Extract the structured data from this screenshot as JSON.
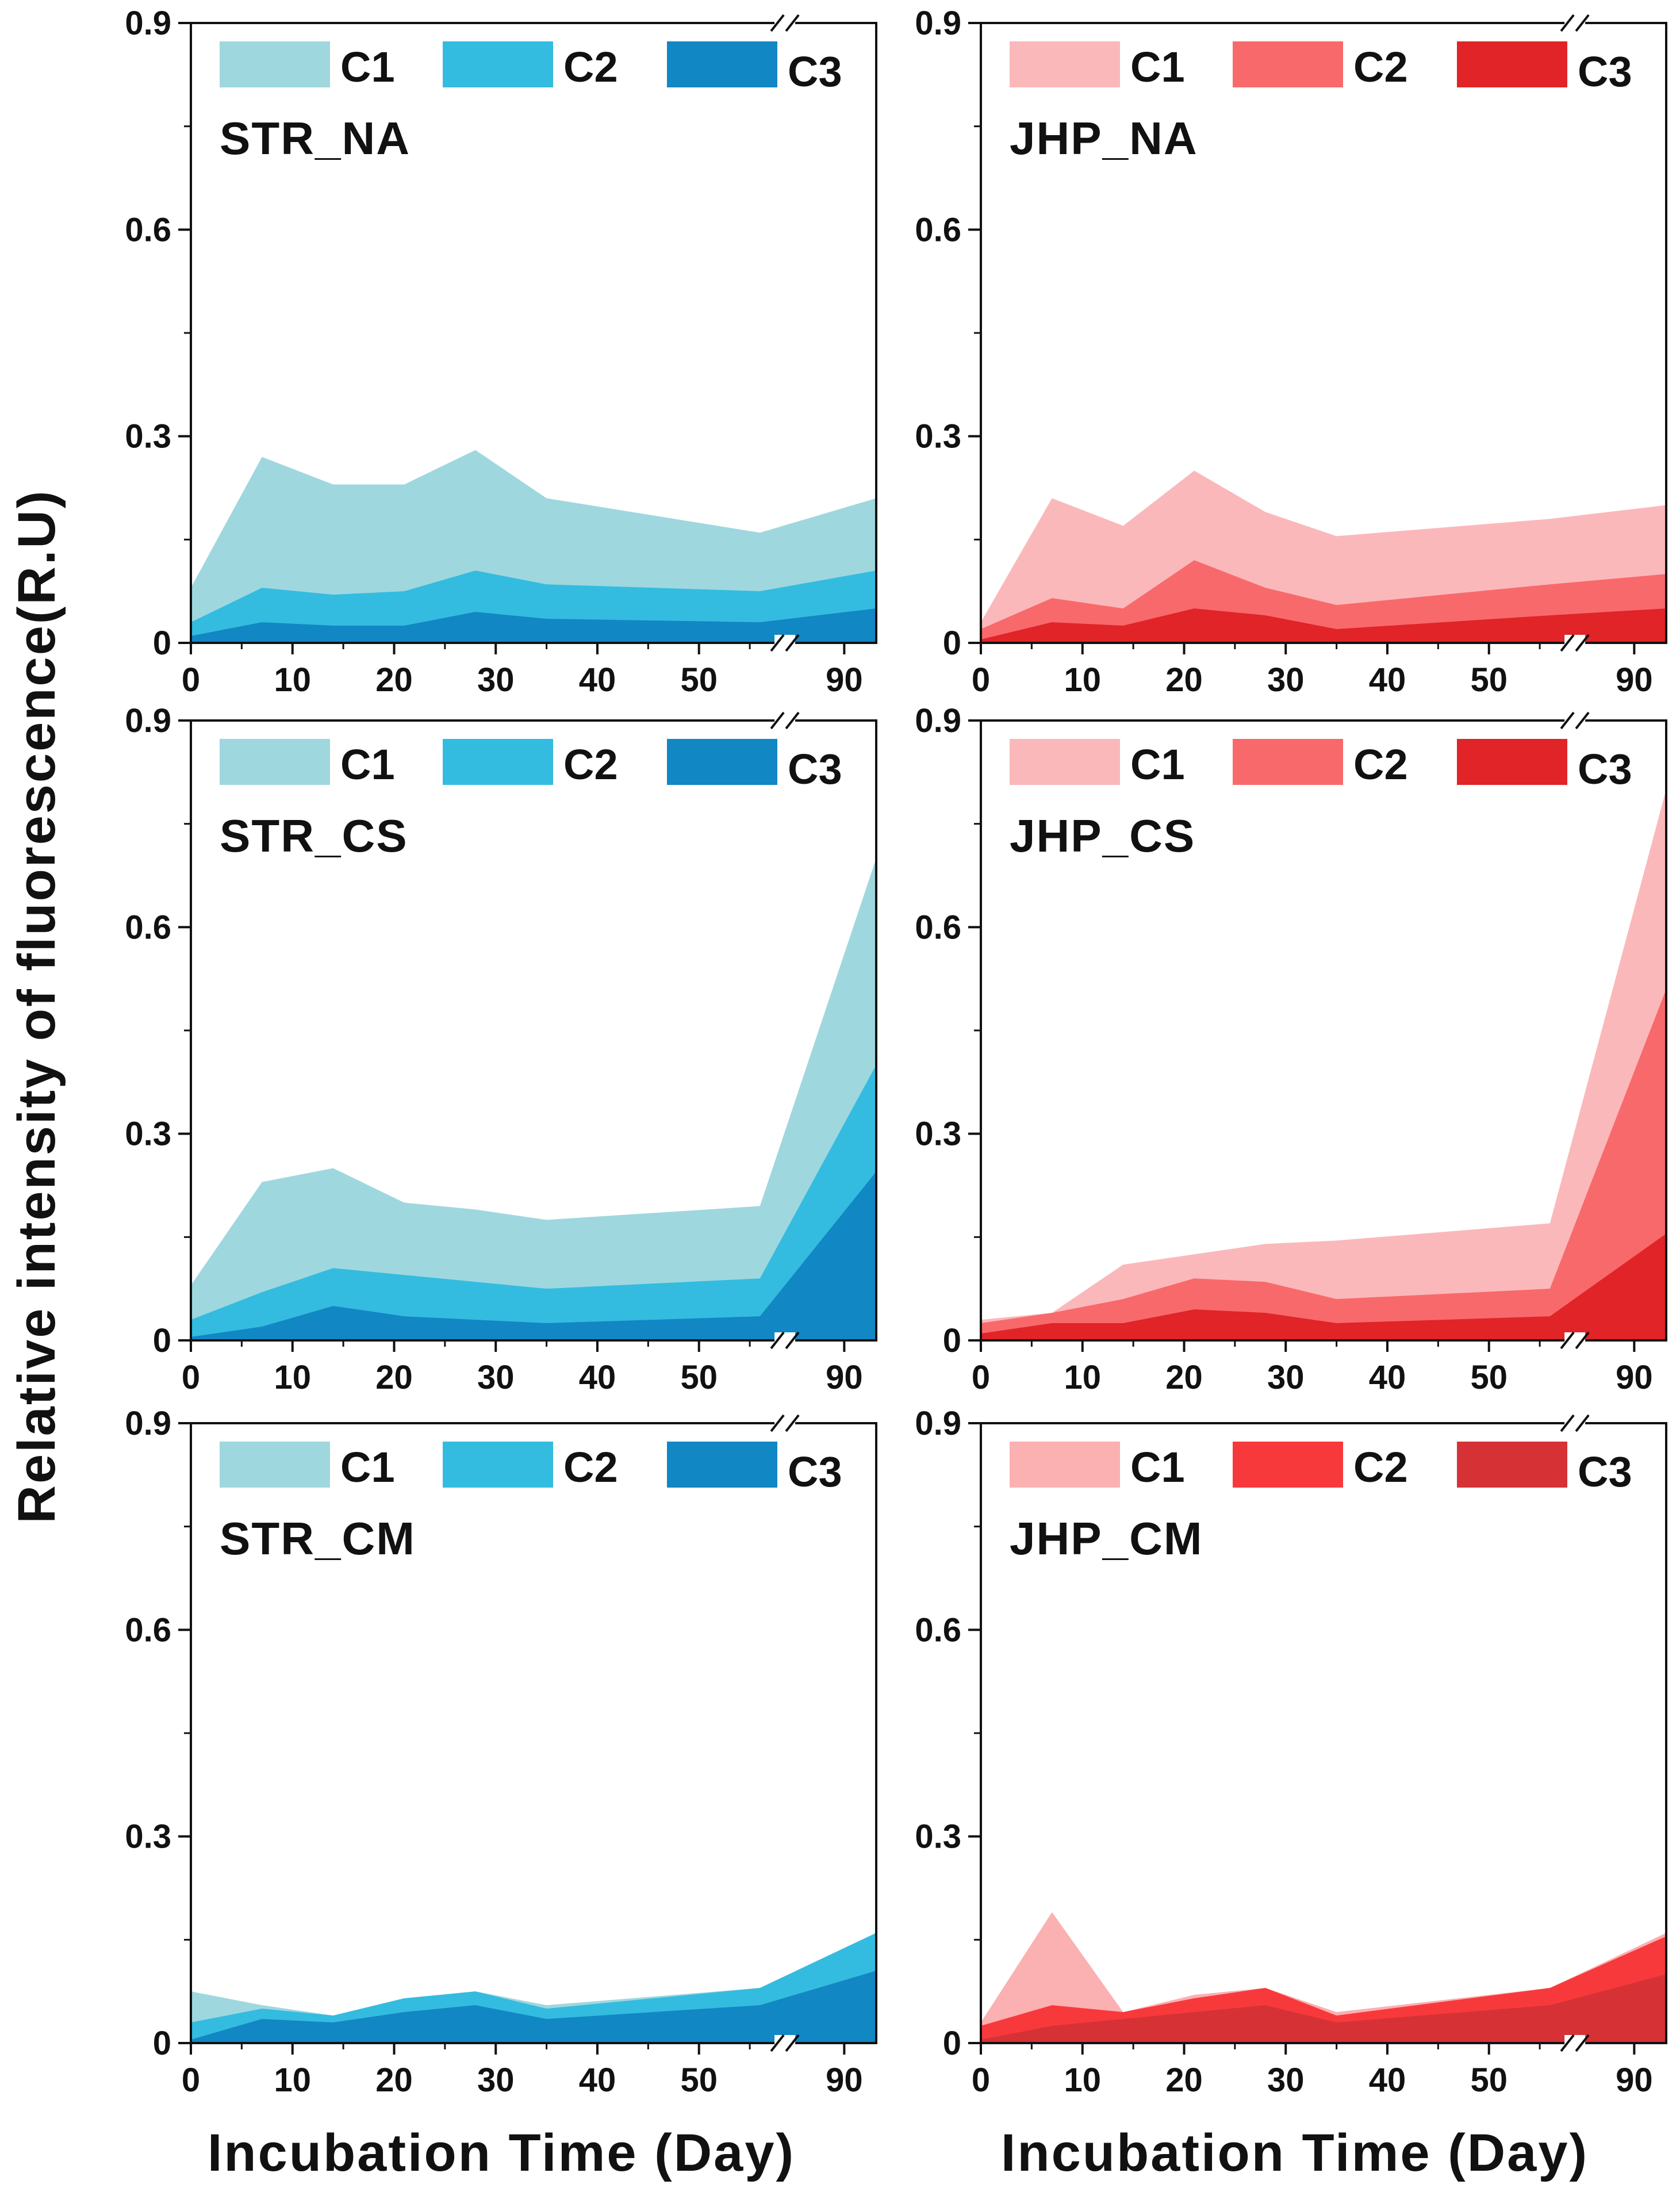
{
  "ylabel": "Relative intensity of fluorescence(R.U)",
  "xlabel": "Incubation Time (Day)",
  "chart_data": [
    {
      "type": "area",
      "title": "STR_NA",
      "x": [
        0,
        7,
        14,
        21,
        28,
        35,
        56,
        95
      ],
      "xticks": [
        0,
        10,
        20,
        30,
        40,
        50,
        90
      ],
      "ylim": [
        0,
        0.9
      ],
      "yticks": [
        0,
        0.3,
        0.6,
        0.9
      ],
      "series": [
        {
          "name": "C1",
          "color": "#9fd7df",
          "values": [
            0.08,
            0.27,
            0.23,
            0.23,
            0.28,
            0.21,
            0.16,
            0.21
          ]
        },
        {
          "name": "C2",
          "color": "#33bcdf",
          "values": [
            0.03,
            0.08,
            0.07,
            0.075,
            0.105,
            0.085,
            0.075,
            0.105
          ]
        },
        {
          "name": "C3",
          "color": "#1187c4",
          "values": [
            0.01,
            0.03,
            0.025,
            0.025,
            0.045,
            0.035,
            0.03,
            0.05
          ]
        }
      ]
    },
    {
      "type": "area",
      "title": "JHP_NA",
      "x": [
        0,
        7,
        14,
        21,
        28,
        35,
        56,
        95
      ],
      "xticks": [
        0,
        10,
        20,
        30,
        40,
        50,
        90
      ],
      "ylim": [
        0,
        0.9
      ],
      "yticks": [
        0,
        0.3,
        0.6,
        0.9
      ],
      "series": [
        {
          "name": "C1",
          "color": "#fbb8ba",
          "values": [
            0.03,
            0.21,
            0.17,
            0.25,
            0.19,
            0.155,
            0.18,
            0.2
          ]
        },
        {
          "name": "C2",
          "color": "#f8696b",
          "values": [
            0.02,
            0.065,
            0.05,
            0.12,
            0.08,
            0.055,
            0.085,
            0.1
          ]
        },
        {
          "name": "C3",
          "color": "#e02427",
          "values": [
            0.005,
            0.03,
            0.025,
            0.05,
            0.04,
            0.02,
            0.04,
            0.05
          ]
        }
      ]
    },
    {
      "type": "area",
      "title": "STR_CS",
      "x": [
        0,
        7,
        14,
        21,
        28,
        35,
        56,
        95
      ],
      "xticks": [
        0,
        10,
        20,
        30,
        40,
        50,
        90
      ],
      "ylim": [
        0,
        0.9
      ],
      "yticks": [
        0,
        0.3,
        0.6,
        0.9
      ],
      "series": [
        {
          "name": "C1",
          "color": "#9fd7df",
          "values": [
            0.08,
            0.23,
            0.25,
            0.2,
            0.19,
            0.175,
            0.195,
            0.7
          ]
        },
        {
          "name": "C2",
          "color": "#33bcdf",
          "values": [
            0.03,
            0.07,
            0.105,
            0.095,
            0.085,
            0.075,
            0.09,
            0.4
          ]
        },
        {
          "name": "C3",
          "color": "#1187c4",
          "values": [
            0.005,
            0.02,
            0.05,
            0.035,
            0.03,
            0.025,
            0.035,
            0.245
          ]
        }
      ]
    },
    {
      "type": "area",
      "title": "JHP_CS",
      "x": [
        0,
        7,
        14,
        21,
        28,
        35,
        56,
        95
      ],
      "xticks": [
        0,
        10,
        20,
        30,
        40,
        50,
        90
      ],
      "ylim": [
        0,
        0.9
      ],
      "yticks": [
        0,
        0.3,
        0.6,
        0.9
      ],
      "series": [
        {
          "name": "C1",
          "color": "#fbb8ba",
          "values": [
            0.03,
            0.04,
            0.11,
            0.125,
            0.14,
            0.145,
            0.17,
            0.8
          ]
        },
        {
          "name": "C2",
          "color": "#f8696b",
          "values": [
            0.025,
            0.04,
            0.06,
            0.09,
            0.085,
            0.06,
            0.075,
            0.51
          ]
        },
        {
          "name": "C3",
          "color": "#e02427",
          "values": [
            0.01,
            0.025,
            0.025,
            0.045,
            0.04,
            0.025,
            0.035,
            0.155
          ]
        }
      ]
    },
    {
      "type": "area",
      "title": "STR_CM",
      "x": [
        0,
        7,
        14,
        21,
        28,
        35,
        56,
        95
      ],
      "xticks": [
        0,
        10,
        20,
        30,
        40,
        50,
        90
      ],
      "ylim": [
        0,
        0.9
      ],
      "yticks": [
        0,
        0.3,
        0.6,
        0.9
      ],
      "series": [
        {
          "name": "C1",
          "color": "#9fd7df",
          "values": [
            0.075,
            0.055,
            0.04,
            0.065,
            0.075,
            0.055,
            0.08,
            0.16
          ]
        },
        {
          "name": "C2",
          "color": "#33bcdf",
          "values": [
            0.03,
            0.05,
            0.04,
            0.065,
            0.075,
            0.05,
            0.08,
            0.16
          ]
        },
        {
          "name": "C3",
          "color": "#1187c4",
          "values": [
            0.005,
            0.035,
            0.03,
            0.045,
            0.055,
            0.035,
            0.055,
            0.105
          ]
        }
      ]
    },
    {
      "type": "area",
      "title": "JHP_CM",
      "x": [
        0,
        7,
        14,
        21,
        28,
        35,
        56,
        95
      ],
      "xticks": [
        0,
        10,
        20,
        30,
        40,
        50,
        90
      ],
      "ylim": [
        0,
        0.9
      ],
      "yticks": [
        0,
        0.3,
        0.6,
        0.9
      ],
      "series": [
        {
          "name": "C1",
          "color": "#fbb0b2",
          "values": [
            0.03,
            0.19,
            0.045,
            0.07,
            0.08,
            0.045,
            0.08,
            0.16
          ]
        },
        {
          "name": "C2",
          "color": "#f8393c",
          "values": [
            0.025,
            0.055,
            0.045,
            0.065,
            0.08,
            0.04,
            0.08,
            0.155
          ]
        },
        {
          "name": "C3",
          "color": "#d63235",
          "values": [
            0.005,
            0.025,
            0.035,
            0.045,
            0.055,
            0.03,
            0.055,
            0.1
          ]
        }
      ]
    }
  ]
}
